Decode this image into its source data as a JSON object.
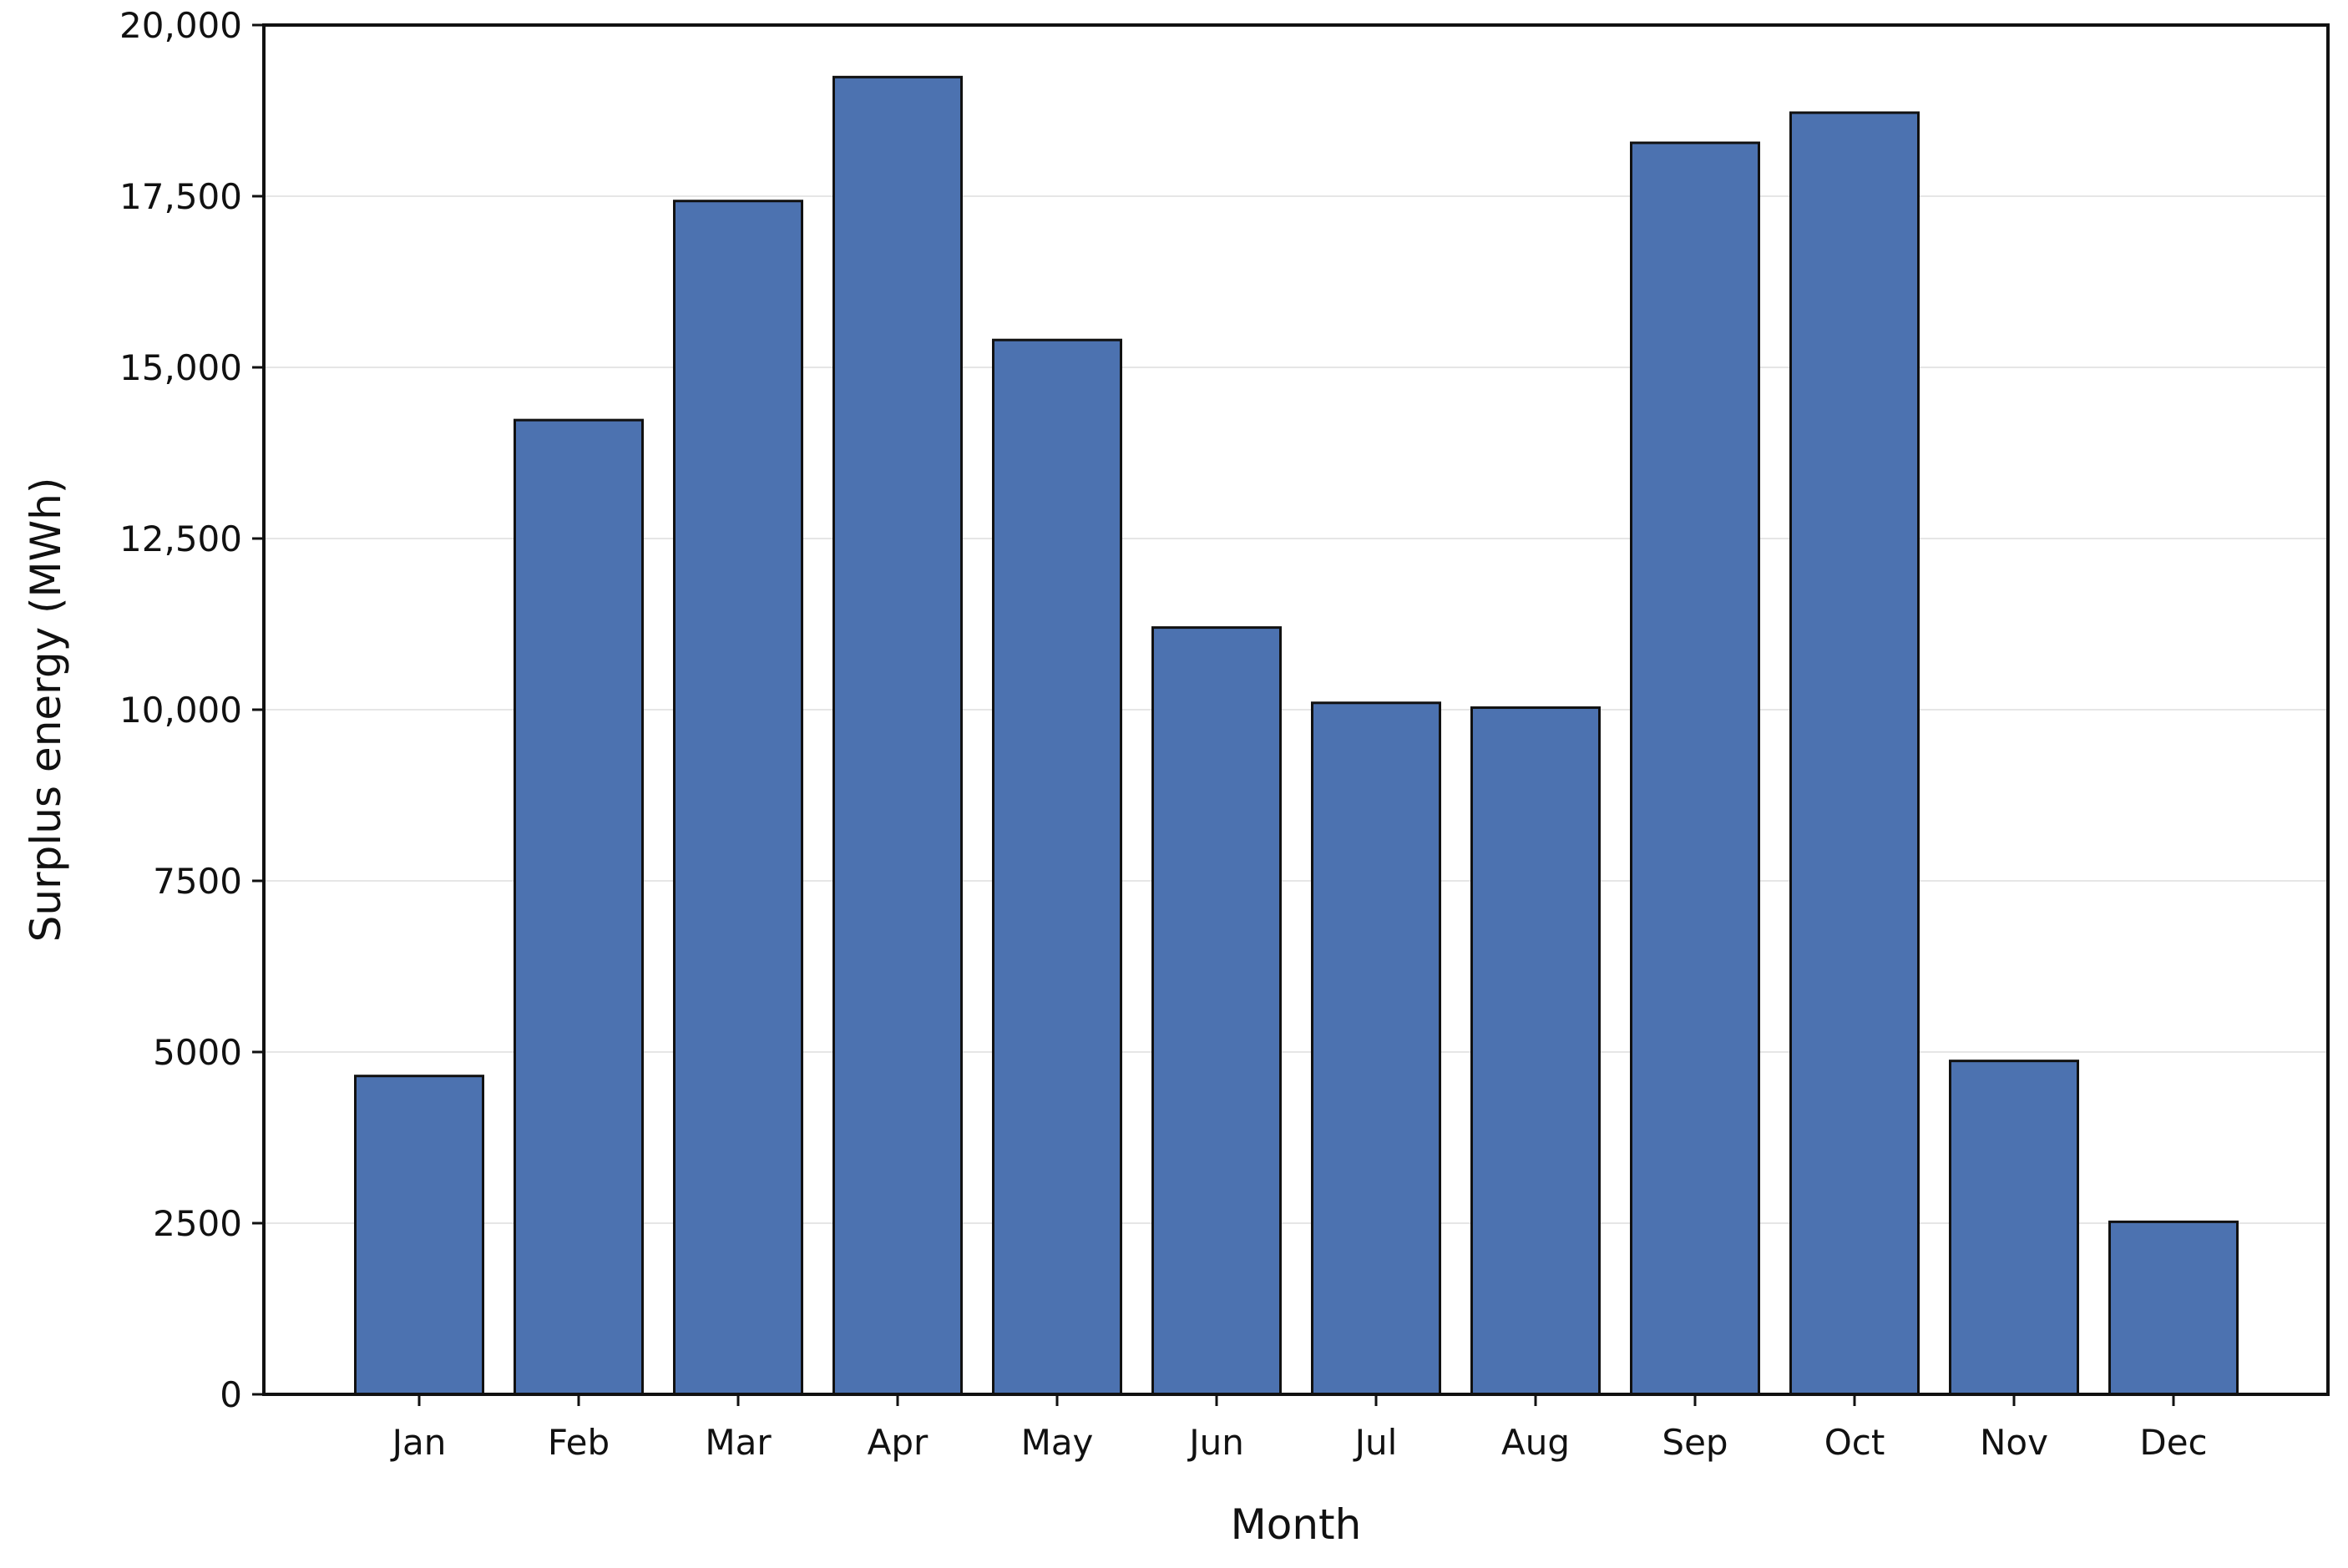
{
  "chart_data": {
    "type": "bar",
    "title": "",
    "xlabel": "Month",
    "ylabel": "Surplus energy (MWh)",
    "categories": [
      "Jan",
      "Feb",
      "Mar",
      "Apr",
      "May",
      "Jun",
      "Jul",
      "Aug",
      "Sep",
      "Oct",
      "Nov",
      "Dec"
    ],
    "values": [
      4650,
      14230,
      17430,
      19240,
      15400,
      11200,
      10100,
      10030,
      18280,
      18720,
      4870,
      2520
    ],
    "ylim": [
      0,
      20000
    ],
    "yticks": [
      0,
      2500,
      5000,
      7500,
      10000,
      12500,
      15000,
      17500,
      20000
    ],
    "ytick_labels": [
      "0",
      "2500",
      "5000",
      "7500",
      "10,000",
      "12,500",
      "15,000",
      "17,500",
      "20,000"
    ],
    "grid": "horizontal, light",
    "legend": "none",
    "colors": {
      "bar_fill": "#4c72b0",
      "bar_edge": "#111111",
      "grid": "#e6e6e6",
      "axis": "#111111"
    }
  }
}
